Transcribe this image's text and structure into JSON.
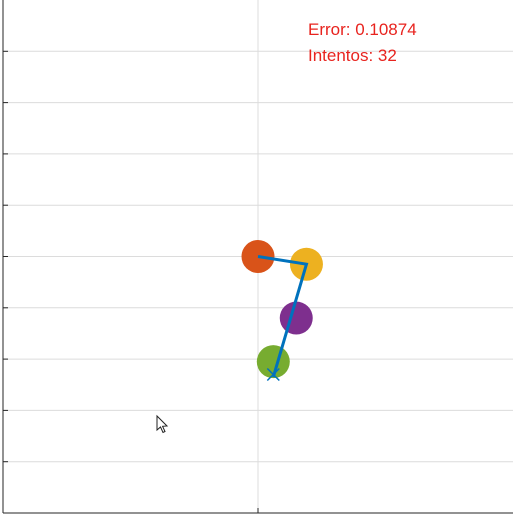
{
  "overlay": {
    "error_text": "Error: 0.10874",
    "attempts_text": "Intentos: 32",
    "text_color": "#e8231e"
  },
  "chart_data": {
    "type": "scatter",
    "title": "",
    "xlabel": "",
    "ylabel": "",
    "xlim": [
      -5,
      5
    ],
    "ylim": [
      -5,
      5
    ],
    "grid": true,
    "x_gridlines": [
      0
    ],
    "y_gridlines": [
      -4,
      -3,
      -2,
      -1,
      0,
      1,
      2,
      3,
      4
    ],
    "colors": {
      "grid": "#dcdcdc",
      "axes": "#262626",
      "arm": "#0072bd"
    },
    "joints": [
      {
        "x": 0.0,
        "y": 0.0,
        "color": "#d95319"
      },
      {
        "x": 0.95,
        "y": -0.15,
        "color": "#edb120"
      },
      {
        "x": 0.75,
        "y": -1.2,
        "color": "#7e2f8e"
      },
      {
        "x": 0.3,
        "y": -2.05,
        "color": "#77ac30"
      }
    ],
    "arm_path": [
      {
        "x": 0.0,
        "y": 0.0
      },
      {
        "x": 0.95,
        "y": -0.15
      },
      {
        "x": 0.3,
        "y": -2.35
      }
    ],
    "target": {
      "x": 0.3,
      "y": -2.3
    }
  }
}
